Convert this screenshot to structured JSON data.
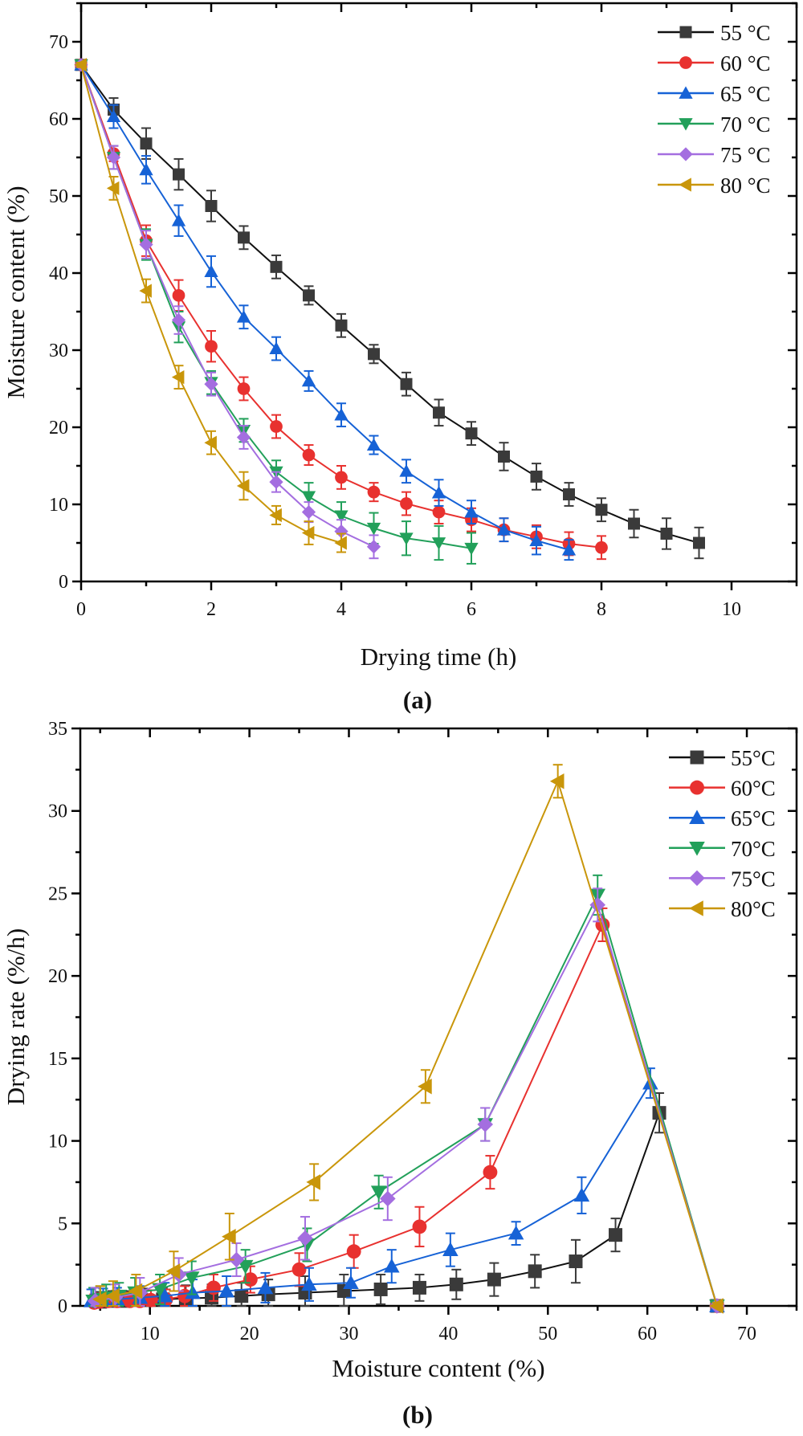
{
  "colors": {
    "55": "#3a3a3a",
    "60": "#e8312f",
    "65": "#1662d6",
    "70": "#22a05a",
    "75": "#a46ee0",
    "80": "#c9960a"
  },
  "chart_data": [
    {
      "type": "line",
      "panel_label": "(a)",
      "xlabel": "Drying time (h)",
      "ylabel": "Moisture content (%)",
      "xlim": [
        0,
        11
      ],
      "ylim": [
        0,
        75
      ],
      "xticks": [
        0,
        2,
        4,
        6,
        8,
        10
      ],
      "yticks": [
        0,
        10,
        20,
        30,
        40,
        50,
        60,
        70
      ],
      "grid": false,
      "legend_position": "top-right",
      "error_bars": true,
      "series": [
        {
          "name": "55 °C",
          "key": "55",
          "marker": "square",
          "x": [
            0,
            0.5,
            1,
            1.5,
            2,
            2.5,
            3,
            3.5,
            4,
            4.5,
            5,
            5.5,
            6,
            6.5,
            7,
            7.5,
            8,
            8.5,
            9,
            9.5
          ],
          "y": [
            67,
            61.2,
            56.8,
            52.8,
            48.7,
            44.6,
            40.8,
            37.1,
            33.2,
            29.5,
            25.6,
            21.9,
            19.2,
            16.2,
            13.6,
            11.3,
            9.3,
            7.5,
            6.2,
            5.0
          ],
          "error": [
            0.3,
            1.5,
            2,
            2,
            2,
            1.5,
            1.5,
            1.2,
            1.5,
            1.2,
            1.5,
            1.7,
            1.5,
            1.8,
            1.7,
            1.5,
            1.5,
            1.8,
            2,
            2
          ]
        },
        {
          "name": "60 °C",
          "key": "60",
          "marker": "circle",
          "x": [
            0,
            0.5,
            1,
            1.5,
            2,
            2.5,
            3,
            3.5,
            4,
            4.5,
            5,
            5.5,
            6,
            6.5,
            7,
            7.5,
            8
          ],
          "y": [
            67,
            55.5,
            44.2,
            37.1,
            30.5,
            25.0,
            20.1,
            16.4,
            13.5,
            11.6,
            10.1,
            9.0,
            8.0,
            6.7,
            5.8,
            4.9,
            4.4
          ],
          "error": [
            0.3,
            1,
            2,
            2,
            2,
            1.5,
            1.5,
            1.3,
            1.5,
            1.2,
            1.5,
            1.5,
            1.5,
            1.5,
            1.5,
            1.5,
            1.5
          ]
        },
        {
          "name": "65 °C",
          "key": "65",
          "marker": "triangle-up",
          "x": [
            0,
            0.5,
            1,
            1.5,
            2,
            2.5,
            3,
            3.5,
            4,
            4.5,
            5,
            5.5,
            6,
            6.5,
            7,
            7.5
          ],
          "y": [
            67,
            60.3,
            53.4,
            46.8,
            40.2,
            34.3,
            30.2,
            26.0,
            21.6,
            17.7,
            14.3,
            11.5,
            9.0,
            6.7,
            5.3,
            4.1
          ],
          "error": [
            0.3,
            1.5,
            1.8,
            2,
            2,
            1.5,
            1.5,
            1.3,
            1.5,
            1.2,
            1.5,
            1.7,
            1.5,
            1.5,
            1.8,
            1.3
          ]
        },
        {
          "name": "70 °C",
          "key": "70",
          "marker": "triangle-down",
          "x": [
            0,
            0.5,
            1,
            1.5,
            2,
            2.5,
            3,
            3.5,
            4,
            4.5,
            5,
            5.5,
            6
          ],
          "y": [
            67,
            55.0,
            43.7,
            33.0,
            25.8,
            19.6,
            14.2,
            11.0,
            8.5,
            6.9,
            5.6,
            5.0,
            4.3
          ],
          "error": [
            0.3,
            1.5,
            2,
            2,
            1.5,
            1.5,
            1.5,
            1.8,
            1.8,
            2,
            2.2,
            2.2,
            2
          ]
        },
        {
          "name": "75 °C",
          "key": "75",
          "marker": "diamond",
          "x": [
            0,
            0.5,
            1,
            1.5,
            2,
            2.5,
            3,
            3.5,
            4,
            4.5
          ],
          "y": [
            67,
            55.0,
            43.7,
            33.9,
            25.6,
            18.7,
            12.9,
            9.0,
            6.5,
            4.5
          ],
          "error": [
            0.3,
            1.5,
            1.8,
            1.8,
            1.5,
            1.5,
            1.3,
            1.3,
            1.5,
            1.5
          ]
        },
        {
          "name": "80 °C",
          "key": "80",
          "marker": "triangle-left",
          "x": [
            0,
            0.5,
            1,
            1.5,
            2,
            2.5,
            3,
            3.5,
            4
          ],
          "y": [
            67,
            51.0,
            37.7,
            26.5,
            18.0,
            12.4,
            8.6,
            6.3,
            5.0
          ],
          "error": [
            0.3,
            1.5,
            1.5,
            1.5,
            1.5,
            1.8,
            1.2,
            1.5,
            1.2
          ]
        }
      ]
    },
    {
      "type": "line",
      "panel_label": "(b)",
      "xlabel": "Moisture content (%)",
      "ylabel": "Drying rate (%/h)",
      "xlim": [
        3,
        75
      ],
      "ylim": [
        0,
        35
      ],
      "xticks": [
        10,
        20,
        30,
        40,
        50,
        60,
        70
      ],
      "yticks": [
        0,
        5,
        10,
        15,
        20,
        25,
        30,
        35
      ],
      "grid": false,
      "legend_position": "top-right",
      "error_bars": true,
      "series": [
        {
          "name": "55°C",
          "key": "55",
          "marker": "square",
          "x": [
            67,
            61.2,
            56.8,
            52.8,
            48.7,
            44.6,
            40.8,
            37.1,
            33.2,
            29.5,
            25.6,
            21.9,
            19.2,
            16.2,
            13.6,
            11.3,
            9.3,
            7.5,
            6.2,
            5.0
          ],
          "y": [
            0,
            11.7,
            4.3,
            2.7,
            2.1,
            1.6,
            1.3,
            1.1,
            1.0,
            0.9,
            0.8,
            0.7,
            0.6,
            0.5,
            0.45,
            0.4,
            0.35,
            0.3,
            0.3,
            0.25
          ],
          "error": [
            0.2,
            1.2,
            1,
            1.3,
            1,
            1,
            0.9,
            0.8,
            0.9,
            1,
            1,
            0.9,
            0.8,
            0.8,
            0.8,
            0.7,
            0.7,
            0.6,
            0.6,
            0.6
          ]
        },
        {
          "name": "60°C",
          "key": "60",
          "marker": "circle",
          "x": [
            67,
            55.5,
            44.2,
            37.1,
            30.5,
            25.0,
            20.1,
            16.4,
            13.5,
            11.6,
            10.1,
            9.0,
            8.0,
            6.7,
            5.8,
            4.9,
            4.4
          ],
          "y": [
            0,
            23.1,
            8.1,
            4.8,
            3.3,
            2.2,
            1.6,
            1.1,
            0.6,
            0.4,
            0.35,
            0.3,
            0.3,
            0.3,
            0.3,
            0.25,
            0.2
          ],
          "error": [
            0.2,
            1,
            1,
            1.2,
            1,
            1,
            0.8,
            0.8,
            0.6,
            0.6,
            0.6,
            0.5,
            0.5,
            0.5,
            0.5,
            0.5,
            0.5
          ]
        },
        {
          "name": "65°C",
          "key": "65",
          "marker": "triangle-up",
          "x": [
            67,
            60.3,
            53.4,
            46.8,
            40.2,
            34.3,
            30.2,
            26.0,
            21.6,
            17.7,
            14.3,
            11.5,
            9.0,
            6.7,
            5.3,
            4.1
          ],
          "y": [
            0,
            13.5,
            6.7,
            4.4,
            3.4,
            2.4,
            1.4,
            1.3,
            1.1,
            0.9,
            0.8,
            0.6,
            0.5,
            0.4,
            0.35,
            0.3
          ],
          "error": [
            0.2,
            0.9,
            1.1,
            0.7,
            1,
            1,
            0.9,
            1,
            0.9,
            0.9,
            0.8,
            0.8,
            0.7,
            0.7,
            0.7,
            0.7
          ]
        },
        {
          "name": "70°C",
          "key": "70",
          "marker": "triangle-down",
          "x": [
            67,
            55.0,
            43.7,
            33.0,
            25.8,
            19.6,
            14.2,
            11.0,
            8.5,
            6.9,
            5.6,
            5.0,
            4.3
          ],
          "y": [
            0,
            24.9,
            11.0,
            6.9,
            3.7,
            2.4,
            1.7,
            1.0,
            0.8,
            0.6,
            0.5,
            0.4,
            0.3
          ],
          "error": [
            0.2,
            1.2,
            1,
            1,
            1,
            1,
            1,
            0.9,
            0.9,
            0.8,
            0.8,
            0.8,
            0.8
          ]
        },
        {
          "name": "75°C",
          "key": "75",
          "marker": "diamond",
          "x": [
            67,
            55.0,
            43.7,
            33.9,
            25.6,
            18.7,
            12.9,
            9.0,
            6.5,
            4.5
          ],
          "y": [
            0,
            24.3,
            11.0,
            6.5,
            4.1,
            2.8,
            1.9,
            0.8,
            0.5,
            0.3
          ],
          "error": [
            0.2,
            1,
            1,
            1.3,
            1.3,
            1,
            1,
            0.9,
            0.8,
            0.8
          ]
        },
        {
          "name": "80°C",
          "key": "80",
          "marker": "triangle-left",
          "x": [
            67,
            51.0,
            37.7,
            26.5,
            18.0,
            12.4,
            8.6,
            6.3,
            5.0
          ],
          "y": [
            0,
            31.8,
            13.3,
            7.5,
            4.2,
            2.1,
            0.9,
            0.6,
            0.4
          ],
          "error": [
            0.2,
            1,
            1,
            1.1,
            1.4,
            1.2,
            1,
            0.9,
            0.8
          ]
        }
      ]
    }
  ]
}
